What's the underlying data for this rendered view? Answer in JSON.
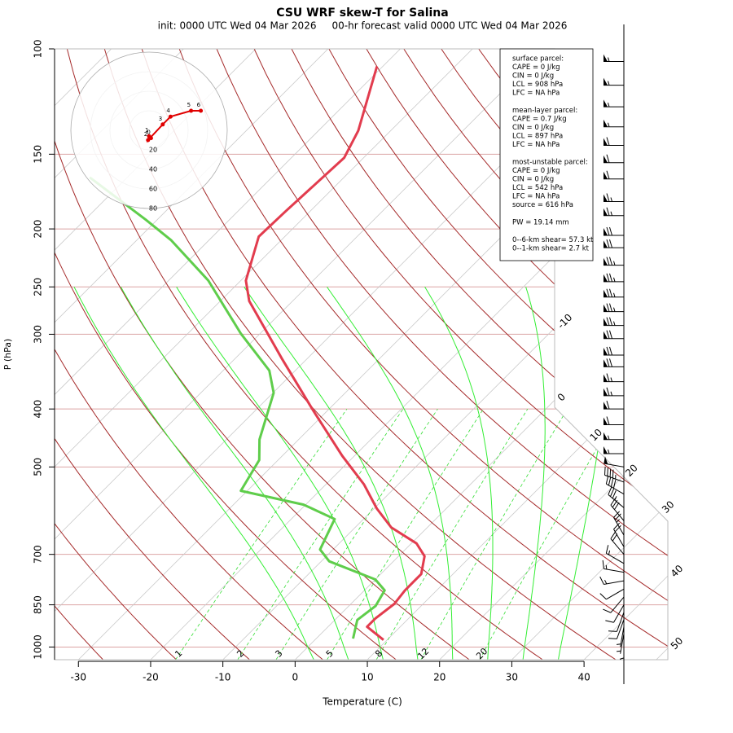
{
  "chart_data": {
    "type": "skewt",
    "title": "CSU WRF skew-T for Salina",
    "subtitle": "init: 0000 UTC Wed 04 Mar 2026     00-hr forecast valid 0000 UTC Wed 04 Mar 2026",
    "xlabel": "Temperature (C)",
    "ylabel": "P (hPa)",
    "xlim": [
      -33.3,
      51.6
    ],
    "xticks": [
      -30,
      -20,
      -10,
      0,
      10,
      20,
      30,
      40
    ],
    "ylim": [
      1050,
      100
    ],
    "yticks": [
      100,
      150,
      200,
      250,
      300,
      400,
      500,
      700,
      850,
      1000
    ],
    "log_scale": true,
    "isotherms": [
      -110,
      -100,
      -90,
      -80,
      -70,
      -60,
      -50,
      -40,
      -30,
      -20,
      -10,
      0,
      10,
      20,
      30,
      40,
      50
    ],
    "dry_adiabats": [
      -30,
      -20,
      -10,
      0,
      10,
      20,
      30,
      40,
      50,
      60,
      70,
      80,
      90,
      100,
      110,
      120,
      130,
      140,
      150,
      160,
      170
    ],
    "moist_adiabats": [
      0,
      5,
      10,
      15,
      20,
      25,
      30,
      35
    ],
    "mixing_ratios": [
      1,
      2,
      3,
      5,
      8,
      12,
      20
    ],
    "temperature": {
      "color": "#e23c4e",
      "pressure": [
        973,
        925,
        896,
        847,
        804,
        755,
        705,
        671,
        631,
        587,
        535,
        479,
        403,
        329,
        264,
        244,
        206,
        187,
        152,
        137,
        107
      ],
      "values": [
        9.5,
        5.4,
        5.4,
        6.0,
        5.6,
        5.6,
        3.6,
        0.7,
        -5.0,
        -9.6,
        -14.7,
        -21.7,
        -31.9,
        -43.6,
        -56.0,
        -59.3,
        -63.6,
        -63.4,
        -62.7,
        -64.5,
        -70.8
      ]
    },
    "dewpoint": {
      "color": "#5fcd4b",
      "pressure": [
        968,
        901,
        854,
        804,
        771,
        719,
        687,
        611,
        578,
        548,
        487,
        450,
        376,
        345,
        299,
        244,
        209,
        193,
        164
      ],
      "values": [
        5.1,
        3.1,
        3.7,
        2.8,
        0,
        -8.9,
        -11.8,
        -14.0,
        -20.3,
        -30.9,
        -32.6,
        -35.4,
        -39.9,
        -43.6,
        -52.7,
        -64.5,
        -75.2,
        -81.6,
        -95.2
      ]
    },
    "hodograph": {
      "rings": [
        20,
        40,
        60,
        80
      ],
      "heights": [
        0,
        1,
        2,
        3,
        4,
        5,
        6
      ],
      "u": [
        2,
        0,
        -1,
        14,
        22,
        43,
        53
      ],
      "v": [
        -8,
        -6,
        -10,
        6,
        14,
        20,
        20
      ],
      "color": "#e00000"
    },
    "wind_barbs": {
      "pressure": [
        105,
        115,
        125,
        135,
        145,
        155,
        165,
        180,
        190,
        205,
        215,
        230,
        245,
        260,
        275,
        290,
        305,
        325,
        340,
        360,
        380,
        400,
        425,
        450,
        475,
        500,
        530,
        555,
        585,
        615,
        650,
        680,
        700,
        725,
        750,
        775,
        800,
        825,
        850,
        875,
        900,
        925,
        950,
        975
      ],
      "speed": [
        55,
        55,
        55,
        55,
        60,
        60,
        60,
        65,
        65,
        70,
        70,
        75,
        75,
        75,
        75,
        75,
        70,
        70,
        70,
        65,
        65,
        60,
        60,
        55,
        55,
        50,
        45,
        40,
        35,
        30,
        25,
        20,
        20,
        15,
        15,
        15,
        10,
        10,
        10,
        10,
        10,
        5,
        5,
        5
      ],
      "direction": [
        270,
        270,
        270,
        270,
        270,
        270,
        270,
        270,
        270,
        270,
        270,
        270,
        270,
        270,
        270,
        270,
        270,
        270,
        270,
        270,
        270,
        270,
        270,
        270,
        270,
        280,
        290,
        300,
        310,
        320,
        330,
        330,
        320,
        300,
        280,
        260,
        240,
        220,
        210,
        200,
        200,
        190,
        190,
        180
      ]
    },
    "info_box": [
      [
        "surface parcel:",
        "CAPE = 0 J/kg",
        "CIN = 0 J/kg",
        "LCL = 908 hPa",
        "LFC = NA hPa"
      ],
      [
        "mean-layer parcel:",
        "CAPE = 0.7 J/kg",
        "CIN = 0 J/kg",
        "LCL = 897 hPa",
        "LFC = NA hPa"
      ],
      [
        "most-unstable parcel:",
        "CAPE = 0 J/kg",
        "CIN = 0 J/kg",
        "LCL = 542 hPa",
        "LFC = NA hPa",
        "source = 616 hPa"
      ],
      [
        "PW =  19.14 mm"
      ],
      [
        "0--6-km shear= 57.3 kt",
        "0--1-km shear= 2.7 kt"
      ]
    ]
  }
}
